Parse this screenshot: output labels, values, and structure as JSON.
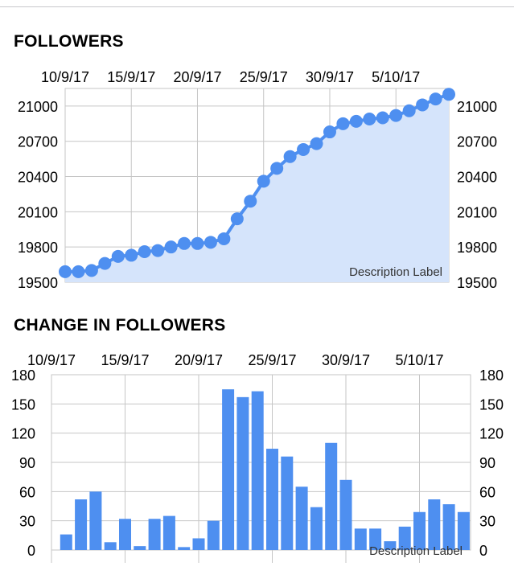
{
  "charts": [
    {
      "title": "FOLLOWERS",
      "description_label": "Description Label"
    },
    {
      "title": "CHANGE IN FOLLOWERS",
      "description_label": "Description Label"
    }
  ],
  "chart_data": [
    {
      "type": "area",
      "title": "FOLLOWERS",
      "x_tick_labels": [
        "10/9/17",
        "15/9/17",
        "20/9/17",
        "25/9/17",
        "30/9/17",
        "5/10/17"
      ],
      "y_tick_labels": [
        "19500",
        "19800",
        "20100",
        "20400",
        "20700",
        "21000"
      ],
      "ylim": [
        19500,
        21150
      ],
      "x_axis_position": "top",
      "y_axis": "both sides",
      "grid": true,
      "line_color": "#4e8ff0",
      "fill_color": "#d5e4fb",
      "series": [
        {
          "values": [
            19590,
            19590,
            19600,
            19660,
            19720,
            19730,
            19760,
            19770,
            19800,
            19830,
            19830,
            19840,
            19870,
            20040,
            20190,
            20360,
            20470,
            20570,
            20630,
            20680,
            20780,
            20850,
            20870,
            20890,
            20900,
            20920,
            20960,
            21010,
            21060,
            21100
          ]
        }
      ],
      "description": "Description Label"
    },
    {
      "type": "bar",
      "title": "CHANGE IN FOLLOWERS",
      "x_tick_labels": [
        "10/9/17",
        "15/9/17",
        "20/9/17",
        "25/9/17",
        "30/9/17",
        "5/10/17"
      ],
      "y_tick_labels": [
        "0",
        "30",
        "60",
        "90",
        "120",
        "150",
        "180"
      ],
      "ylim": [
        0,
        180
      ],
      "x_axis_position": "top",
      "y_axis": "both sides",
      "grid": true,
      "bar_color": "#4e8ff0",
      "series": [
        {
          "values": [
            0,
            16,
            52,
            60,
            8,
            32,
            4,
            32,
            35,
            3,
            12,
            30,
            165,
            157,
            163,
            104,
            96,
            65,
            44,
            110,
            72,
            22,
            22,
            9,
            24,
            39,
            52,
            47,
            39
          ]
        }
      ],
      "description": "Description Label"
    }
  ]
}
